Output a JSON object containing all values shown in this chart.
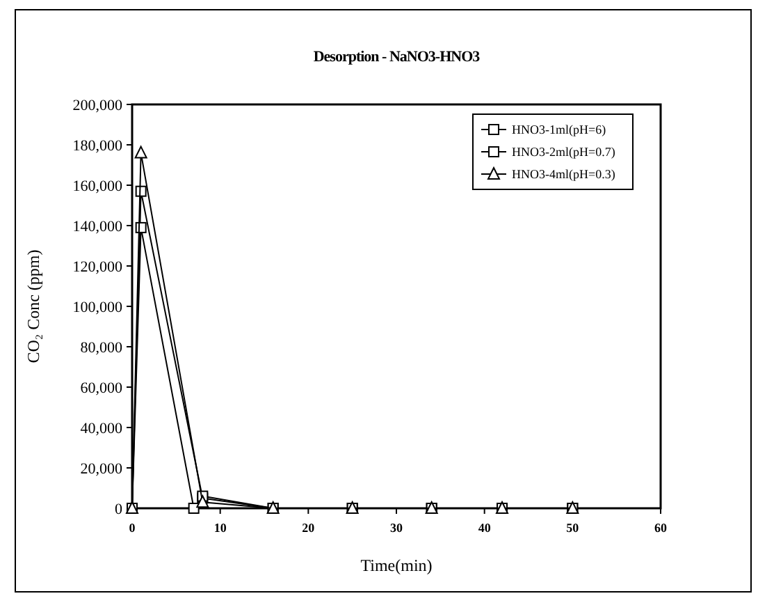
{
  "chart_data": {
    "type": "line",
    "title": "Desorption - NaNO3-HNO3",
    "xlabel": "Time(min)",
    "ylabel": "CO₂ Conc (ppm)",
    "xlim": [
      0,
      60
    ],
    "xticks": [
      0,
      10,
      20,
      30,
      40,
      50,
      60
    ],
    "ylim": [
      0,
      200000
    ],
    "yticks": [
      {
        "value": 0,
        "label": "0"
      },
      {
        "value": 20000,
        "label": "20,000"
      },
      {
        "value": 40000,
        "label": "40,000"
      },
      {
        "value": 60000,
        "label": "60,000"
      },
      {
        "value": 80000,
        "label": "80,000"
      },
      {
        "value": 100000,
        "label": "100,000"
      },
      {
        "value": 120000,
        "label": "120,000"
      },
      {
        "value": 140000,
        "label": "140,000"
      },
      {
        "value": 160000,
        "label": "160,000"
      },
      {
        "value": 180000,
        "label": "180,000"
      },
      {
        "value": 200000,
        "label": "200,000"
      }
    ],
    "legend": "top right",
    "grid": false,
    "line_style": "solid",
    "series": [
      {
        "name": "HNO3-1ml(pH=6)",
        "color": "#000000",
        "marker": "square",
        "x": [
          0,
          1,
          8,
          16,
          25,
          34,
          42,
          50
        ],
        "values": [
          0,
          157000,
          5000,
          0,
          0,
          0,
          0,
          0
        ]
      },
      {
        "name": "HNO3-2ml(pH=0.7)",
        "color": "#000000",
        "marker": "square",
        "x": [
          0,
          1,
          7,
          8,
          16,
          25,
          34,
          42,
          50
        ],
        "values": [
          0,
          139000,
          0,
          6000,
          0,
          0,
          0,
          0,
          0
        ]
      },
      {
        "name": "HNO3-4ml(pH=0.3)",
        "color": "#000000",
        "marker": "triangle",
        "x": [
          0,
          1,
          8,
          16,
          25,
          34,
          42,
          50
        ],
        "values": [
          0,
          176000,
          3000,
          0,
          0,
          0,
          0,
          0
        ]
      }
    ]
  }
}
